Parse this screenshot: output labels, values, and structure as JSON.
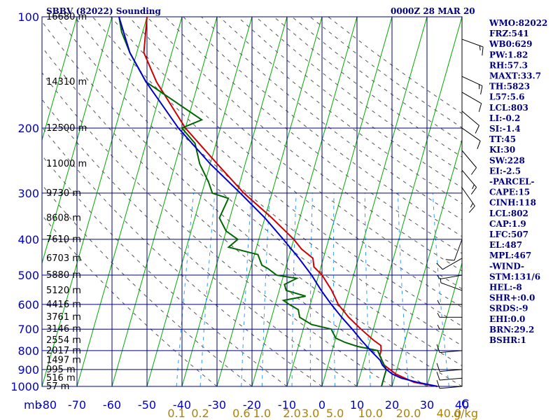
{
  "header": {
    "station": "SBBV (82022) Sounding",
    "time": "0000Z 28 MAR 20"
  },
  "indices": [
    "WMO:82022",
    "FRZ:541",
    "WB0:629",
    "PW:1.82",
    "RH:57.3",
    "MAXT:33.7",
    "TH:5823",
    "L57:5.6",
    "LCL:803",
    "LI:-0.2",
    "SI:-1.4",
    "TT:45",
    "KI:30",
    "SW:228",
    "EI:-2.5",
    "-PARCEL-",
    "CAPE:15",
    "CINH:118",
    "LCL:802",
    "CAP:1.9",
    "LFC:507",
    "EL:487",
    "MPL:467",
    "-WIND-",
    "STM:131/6",
    "HEL:-8",
    "SHR+:0.0",
    "SRDS:-9",
    "EHI:0.0",
    "BRN:29.2",
    "BSHR:1"
  ],
  "colors": {
    "grid": "#000080",
    "isotherm": "#00aa00",
    "dry_adiabat": "#555555",
    "mixing_ratio": "#3399ff",
    "temperature": "#cc0000",
    "dewpoint": "#006600",
    "parcel": "#0000cc"
  },
  "chart_data": {
    "type": "line",
    "title": "SBBV (82022) Sounding",
    "xlabel": "",
    "ylabel": "mb",
    "x_unit_label": "C",
    "mixing_ratio_unit_label": "g/kg",
    "xlim": [
      -80,
      40
    ],
    "pressure_levels": [
      100,
      200,
      300,
      400,
      500,
      600,
      700,
      800,
      900,
      1000
    ],
    "pressure_tick_labels": [
      "100",
      "200",
      "300",
      "400",
      "500",
      "600",
      "700",
      "800",
      "900",
      "1000"
    ],
    "temperature_ticks": [
      -80,
      -70,
      -60,
      -50,
      -40,
      -30,
      -20,
      -10,
      0,
      10,
      20,
      30,
      40
    ],
    "temperature_tick_labels": [
      "-80",
      "-70",
      "-60",
      "-50",
      "-40",
      "-30",
      "-20",
      "-10",
      "0",
      "10",
      "20",
      "30",
      "40"
    ],
    "mixing_ratio_ticks": [
      0.1,
      0.2,
      0.6,
      1.0,
      2.0,
      3.0,
      5.0,
      10.0,
      20.0,
      40.0
    ],
    "mixing_ratio_tick_labels": [
      "0.1",
      "0.2",
      "0.6",
      "1.0",
      "2.0",
      "3.0",
      "5.0",
      "10.0",
      "20.0",
      "40.0"
    ],
    "height_labels": [
      {
        "p": 100,
        "label": "16680 m"
      },
      {
        "p": 150,
        "label": "14310 m"
      },
      {
        "p": 200,
        "label": "12500 m"
      },
      {
        "p": 250,
        "label": "11000 m"
      },
      {
        "p": 300,
        "label": "9730 m"
      },
      {
        "p": 350,
        "label": "8608 m"
      },
      {
        "p": 400,
        "label": "7610 m"
      },
      {
        "p": 450,
        "label": "6703 m"
      },
      {
        "p": 500,
        "label": "5880 m"
      },
      {
        "p": 550,
        "label": "5120 m"
      },
      {
        "p": 600,
        "label": "4416 m"
      },
      {
        "p": 650,
        "label": "3761 m"
      },
      {
        "p": 700,
        "label": "3146 m"
      },
      {
        "p": 750,
        "label": "2554 m"
      },
      {
        "p": 800,
        "label": "2017 m"
      },
      {
        "p": 850,
        "label": "1497 m"
      },
      {
        "p": 900,
        "label": "995 m"
      },
      {
        "p": 950,
        "label": "516 m"
      },
      {
        "p": 1000,
        "label": "57 m"
      }
    ],
    "series": [
      {
        "id": "temperature",
        "points": [
          [
            1000,
            33
          ],
          [
            975,
            26
          ],
          [
            950,
            23
          ],
          [
            925,
            20
          ],
          [
            900,
            18
          ],
          [
            875,
            16
          ],
          [
            850,
            15
          ],
          [
            825,
            14
          ],
          [
            800,
            14
          ],
          [
            775,
            13.5
          ],
          [
            750,
            11
          ],
          [
            700,
            6.5
          ],
          [
            650,
            2
          ],
          [
            600,
            -2
          ],
          [
            550,
            -5
          ],
          [
            500,
            -9
          ],
          [
            475,
            -12
          ],
          [
            450,
            -13
          ],
          [
            425,
            -17
          ],
          [
            400,
            -20
          ],
          [
            350,
            -28
          ],
          [
            300,
            -38
          ],
          [
            250,
            -48
          ],
          [
            200,
            -60
          ],
          [
            150,
            -72
          ],
          [
            125,
            -78
          ],
          [
            100,
            -80
          ]
        ]
      },
      {
        "id": "dewpoint",
        "points": [
          [
            1000,
            17
          ],
          [
            950,
            17
          ],
          [
            900,
            17
          ],
          [
            850,
            15
          ],
          [
            800,
            13
          ],
          [
            780,
            7
          ],
          [
            760,
            3
          ],
          [
            740,
            0
          ],
          [
            700,
            -2
          ],
          [
            680,
            -8
          ],
          [
            650,
            -12
          ],
          [
            620,
            -13
          ],
          [
            600,
            -16
          ],
          [
            585,
            -18
          ],
          [
            570,
            -12
          ],
          [
            550,
            -18
          ],
          [
            530,
            -19
          ],
          [
            510,
            -16
          ],
          [
            500,
            -22
          ],
          [
            480,
            -25
          ],
          [
            470,
            -27
          ],
          [
            455,
            -28
          ],
          [
            440,
            -29
          ],
          [
            420,
            -38
          ],
          [
            400,
            -36
          ],
          [
            380,
            -40
          ],
          [
            350,
            -43
          ],
          [
            310,
            -42
          ],
          [
            300,
            -47
          ],
          [
            280,
            -49
          ],
          [
            250,
            -53
          ],
          [
            220,
            -56
          ],
          [
            200,
            -61
          ],
          [
            190,
            -56
          ],
          [
            150,
            -75
          ],
          [
            125,
            -82
          ],
          [
            110,
            -86
          ],
          [
            100,
            -88
          ]
        ]
      },
      {
        "id": "parcel",
        "points": [
          [
            1000,
            33
          ],
          [
            975,
            27
          ],
          [
            950,
            22
          ],
          [
            925,
            19
          ],
          [
            900,
            17
          ],
          [
            875,
            15.5
          ],
          [
            850,
            14.5
          ],
          [
            800,
            11
          ],
          [
            750,
            7.5
          ],
          [
            700,
            4
          ],
          [
            650,
            0
          ],
          [
            600,
            -4
          ],
          [
            550,
            -8
          ],
          [
            500,
            -12
          ],
          [
            450,
            -17
          ],
          [
            400,
            -23
          ],
          [
            350,
            -30
          ],
          [
            300,
            -39
          ],
          [
            250,
            -50
          ],
          [
            200,
            -62
          ],
          [
            150,
            -75
          ],
          [
            125,
            -82
          ],
          [
            100,
            -88
          ]
        ]
      }
    ],
    "wind_barbs": [
      {
        "p": 115,
        "dir": 110,
        "spd": 15
      },
      {
        "p": 145,
        "dir": 115,
        "spd": 15
      },
      {
        "p": 160,
        "dir": 120,
        "spd": 10
      },
      {
        "p": 180,
        "dir": 130,
        "spd": 10
      },
      {
        "p": 200,
        "dir": 125,
        "spd": 10
      },
      {
        "p": 230,
        "dir": 140,
        "spd": 10
      },
      {
        "p": 260,
        "dir": 140,
        "spd": 15
      },
      {
        "p": 290,
        "dir": 145,
        "spd": 15
      },
      {
        "p": 400,
        "dir": 200,
        "spd": 10
      },
      {
        "p": 450,
        "dir": 240,
        "spd": 10
      },
      {
        "p": 500,
        "dir": 260,
        "spd": 5
      },
      {
        "p": 550,
        "dir": 290,
        "spd": 5
      },
      {
        "p": 600,
        "dir": 270,
        "spd": 5
      },
      {
        "p": 650,
        "dir": 270,
        "spd": 5
      },
      {
        "p": 700,
        "dir": 270,
        "spd": 5
      },
      {
        "p": 800,
        "dir": 265,
        "spd": 10
      },
      {
        "p": 900,
        "dir": 265,
        "spd": 10
      },
      {
        "p": 950,
        "dir": 265,
        "spd": 10
      },
      {
        "p": 1000,
        "dir": 265,
        "spd": 10
      }
    ]
  }
}
